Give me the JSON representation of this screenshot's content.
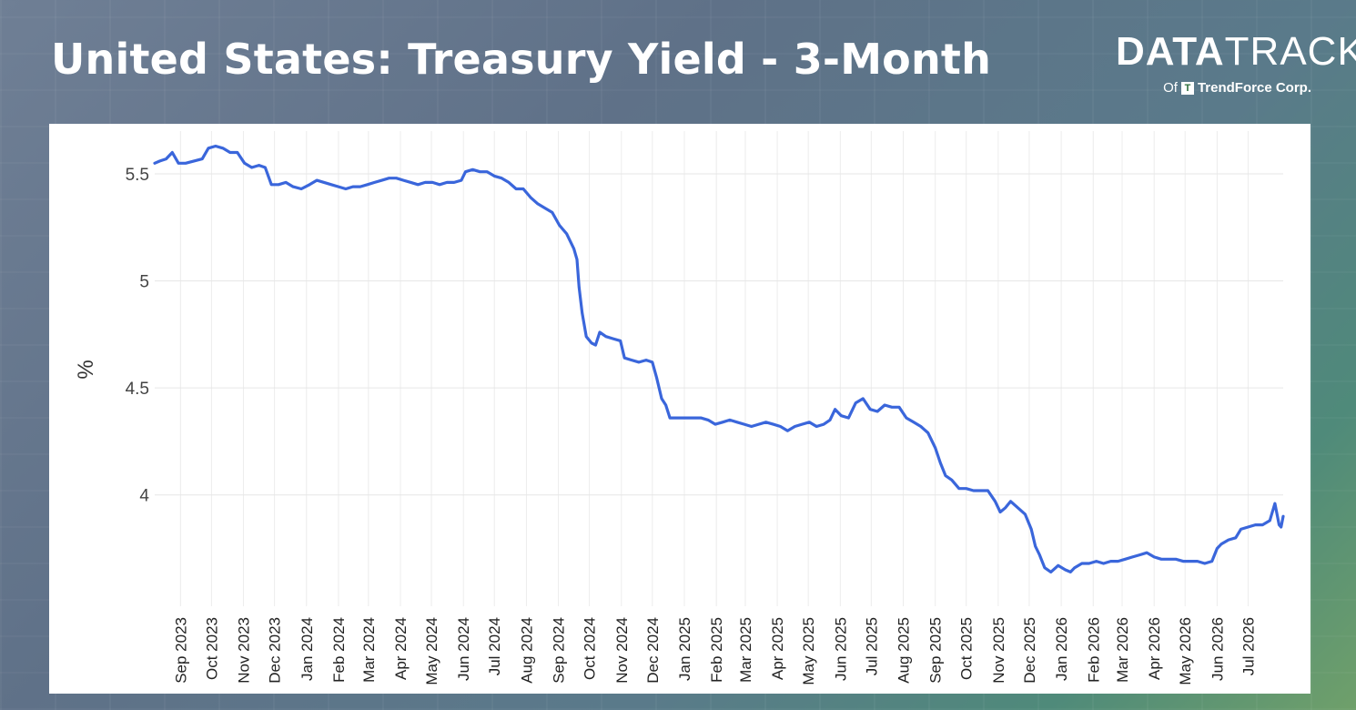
{
  "header": {
    "title": "United States: Treasury Yield - 3-Month",
    "logo_part1": "DATA",
    "logo_part2": "TRACK",
    "logo_of": "Of",
    "logo_company": "TrendForce Corp."
  },
  "chart_data": {
    "type": "line",
    "title": "United States: Treasury Yield - 3-Month",
    "xlabel": "",
    "ylabel": "%",
    "ylim": [
      3.48,
      5.7
    ],
    "yticks": [
      4,
      4.5,
      5,
      5.5
    ],
    "ytick_labels": [
      "4",
      "4.5",
      "5",
      "5.5"
    ],
    "grid": true,
    "line_color": "#3a66db",
    "x_ticks": [
      "2023-09-01",
      "2023-10-01",
      "2023-11-01",
      "2023-12-01",
      "2024-01-01",
      "2024-02-01",
      "2024-03-01",
      "2024-04-01",
      "2024-05-01",
      "2024-06-01",
      "2024-07-01",
      "2024-08-01",
      "2024-09-01",
      "2024-10-01",
      "2024-11-01",
      "2024-12-01",
      "2025-01-01",
      "2025-02-01",
      "2025-03-01",
      "2025-04-01",
      "2025-05-01",
      "2025-06-01",
      "2025-07-01",
      "2025-08-01",
      "2025-09-01",
      "2025-10-01",
      "2025-11-01",
      "2025-12-01",
      "2026-01-01",
      "2026-02-01",
      "2026-03-01",
      "2026-04-01",
      "2026-05-01",
      "2026-06-01",
      "2026-07-01"
    ],
    "x_tick_labels": [
      "Sep 2023",
      "Oct 2023",
      "Nov 2023",
      "Dec 2023",
      "Jan 2024",
      "Feb 2024",
      "Mar 2024",
      "Apr 2024",
      "May 2024",
      "Jun 2024",
      "Jul 2024",
      "Aug 2024",
      "Sep 2024",
      "Oct 2024",
      "Nov 2024",
      "Dec 2024",
      "Jan 2025",
      "Feb 2025",
      "Mar 2025",
      "Apr 2025",
      "May 2025",
      "Jun 2025",
      "Jul 2025",
      "Aug 2025",
      "Sep 2025",
      "Oct 2025",
      "Nov 2025",
      "Dec 2025",
      "Jan 2026",
      "Feb 2026",
      "Mar 2026",
      "Apr 2026",
      "May 2026",
      "Jun 2026",
      "Jul 2026"
    ],
    "series": [
      {
        "name": "",
        "points": [
          [
            "2023-08-07",
            5.55
          ],
          [
            "2023-08-12",
            5.56
          ],
          [
            "2023-08-18",
            5.57
          ],
          [
            "2023-08-24",
            5.6
          ],
          [
            "2023-08-30",
            5.55
          ],
          [
            "2023-09-06",
            5.55
          ],
          [
            "2023-09-14",
            5.56
          ],
          [
            "2023-09-22",
            5.57
          ],
          [
            "2023-09-28",
            5.62
          ],
          [
            "2023-10-05",
            5.63
          ],
          [
            "2023-10-12",
            5.62
          ],
          [
            "2023-10-19",
            5.6
          ],
          [
            "2023-10-26",
            5.6
          ],
          [
            "2023-11-02",
            5.55
          ],
          [
            "2023-11-09",
            5.53
          ],
          [
            "2023-11-16",
            5.54
          ],
          [
            "2023-11-22",
            5.53
          ],
          [
            "2023-11-28",
            5.45
          ],
          [
            "2023-12-05",
            5.45
          ],
          [
            "2023-12-12",
            5.46
          ],
          [
            "2023-12-19",
            5.44
          ],
          [
            "2023-12-27",
            5.43
          ],
          [
            "2024-01-04",
            5.45
          ],
          [
            "2024-01-11",
            5.47
          ],
          [
            "2024-01-18",
            5.46
          ],
          [
            "2024-01-25",
            5.45
          ],
          [
            "2024-02-01",
            5.44
          ],
          [
            "2024-02-08",
            5.43
          ],
          [
            "2024-02-15",
            5.44
          ],
          [
            "2024-02-22",
            5.44
          ],
          [
            "2024-02-29",
            5.45
          ],
          [
            "2024-03-07",
            5.46
          ],
          [
            "2024-03-14",
            5.47
          ],
          [
            "2024-03-21",
            5.48
          ],
          [
            "2024-03-28",
            5.48
          ],
          [
            "2024-04-04",
            5.47
          ],
          [
            "2024-04-11",
            5.46
          ],
          [
            "2024-04-18",
            5.45
          ],
          [
            "2024-04-25",
            5.46
          ],
          [
            "2024-05-02",
            5.46
          ],
          [
            "2024-05-09",
            5.45
          ],
          [
            "2024-05-16",
            5.46
          ],
          [
            "2024-05-23",
            5.46
          ],
          [
            "2024-05-30",
            5.47
          ],
          [
            "2024-06-03",
            5.51
          ],
          [
            "2024-06-10",
            5.52
          ],
          [
            "2024-06-17",
            5.51
          ],
          [
            "2024-06-24",
            5.51
          ],
          [
            "2024-07-01",
            5.49
          ],
          [
            "2024-07-08",
            5.48
          ],
          [
            "2024-07-15",
            5.46
          ],
          [
            "2024-07-22",
            5.43
          ],
          [
            "2024-07-29",
            5.43
          ],
          [
            "2024-08-05",
            5.39
          ],
          [
            "2024-08-12",
            5.36
          ],
          [
            "2024-08-19",
            5.34
          ],
          [
            "2024-08-26",
            5.32
          ],
          [
            "2024-09-02",
            5.26
          ],
          [
            "2024-09-09",
            5.22
          ],
          [
            "2024-09-16",
            5.15
          ],
          [
            "2024-09-19",
            5.1
          ],
          [
            "2024-09-21",
            4.97
          ],
          [
            "2024-09-24",
            4.85
          ],
          [
            "2024-09-28",
            4.74
          ],
          [
            "2024-10-03",
            4.71
          ],
          [
            "2024-10-07",
            4.7
          ],
          [
            "2024-10-11",
            4.76
          ],
          [
            "2024-10-17",
            4.74
          ],
          [
            "2024-10-24",
            4.73
          ],
          [
            "2024-10-31",
            4.72
          ],
          [
            "2024-11-04",
            4.64
          ],
          [
            "2024-11-11",
            4.63
          ],
          [
            "2024-11-18",
            4.62
          ],
          [
            "2024-11-25",
            4.63
          ],
          [
            "2024-12-01",
            4.62
          ],
          [
            "2024-12-05",
            4.55
          ],
          [
            "2024-12-10",
            4.45
          ],
          [
            "2024-12-14",
            4.42
          ],
          [
            "2024-12-18",
            4.36
          ],
          [
            "2024-12-26",
            4.36
          ],
          [
            "2025-01-03",
            4.36
          ],
          [
            "2025-01-10",
            4.36
          ],
          [
            "2025-01-17",
            4.36
          ],
          [
            "2025-01-24",
            4.35
          ],
          [
            "2025-01-31",
            4.33
          ],
          [
            "2025-02-07",
            4.34
          ],
          [
            "2025-02-14",
            4.35
          ],
          [
            "2025-02-21",
            4.34
          ],
          [
            "2025-02-28",
            4.33
          ],
          [
            "2025-03-07",
            4.32
          ],
          [
            "2025-03-14",
            4.33
          ],
          [
            "2025-03-21",
            4.34
          ],
          [
            "2025-03-28",
            4.33
          ],
          [
            "2025-04-04",
            4.32
          ],
          [
            "2025-04-11",
            4.3
          ],
          [
            "2025-04-18",
            4.32
          ],
          [
            "2025-04-25",
            4.33
          ],
          [
            "2025-05-02",
            4.34
          ],
          [
            "2025-05-09",
            4.32
          ],
          [
            "2025-05-16",
            4.33
          ],
          [
            "2025-05-22",
            4.35
          ],
          [
            "2025-05-27",
            4.4
          ],
          [
            "2025-06-02",
            4.37
          ],
          [
            "2025-06-09",
            4.36
          ],
          [
            "2025-06-16",
            4.43
          ],
          [
            "2025-06-23",
            4.45
          ],
          [
            "2025-06-30",
            4.4
          ],
          [
            "2025-07-07",
            4.39
          ],
          [
            "2025-07-14",
            4.42
          ],
          [
            "2025-07-21",
            4.41
          ],
          [
            "2025-07-28",
            4.41
          ],
          [
            "2025-08-04",
            4.36
          ],
          [
            "2025-08-11",
            4.34
          ],
          [
            "2025-08-18",
            4.32
          ],
          [
            "2025-08-25",
            4.29
          ],
          [
            "2025-09-01",
            4.22
          ],
          [
            "2025-09-06",
            4.15
          ],
          [
            "2025-09-11",
            4.09
          ],
          [
            "2025-09-17",
            4.07
          ],
          [
            "2025-09-24",
            4.03
          ],
          [
            "2025-10-01",
            4.03
          ],
          [
            "2025-10-08",
            4.02
          ],
          [
            "2025-10-15",
            4.02
          ],
          [
            "2025-10-22",
            4.02
          ],
          [
            "2025-10-29",
            3.97
          ],
          [
            "2025-11-03",
            3.92
          ],
          [
            "2025-11-08",
            3.94
          ],
          [
            "2025-11-13",
            3.97
          ],
          [
            "2025-11-20",
            3.94
          ],
          [
            "2025-11-27",
            3.91
          ],
          [
            "2025-12-03",
            3.84
          ],
          [
            "2025-12-07",
            3.76
          ],
          [
            "2025-12-11",
            3.72
          ],
          [
            "2025-12-16",
            3.66
          ],
          [
            "2025-12-22",
            3.64
          ],
          [
            "2025-12-29",
            3.67
          ],
          [
            "2026-01-05",
            3.65
          ],
          [
            "2026-01-10",
            3.64
          ],
          [
            "2026-01-14",
            3.66
          ],
          [
            "2026-01-21",
            3.68
          ],
          [
            "2026-01-28",
            3.68
          ],
          [
            "2026-02-04",
            3.69
          ],
          [
            "2026-02-11",
            3.68
          ],
          [
            "2026-02-18",
            3.69
          ],
          [
            "2026-02-25",
            3.69
          ],
          [
            "2026-03-04",
            3.7
          ],
          [
            "2026-03-11",
            3.71
          ],
          [
            "2026-03-18",
            3.72
          ],
          [
            "2026-03-25",
            3.73
          ],
          [
            "2026-04-01",
            3.71
          ],
          [
            "2026-04-08",
            3.7
          ],
          [
            "2026-04-15",
            3.7
          ],
          [
            "2026-04-22",
            3.7
          ],
          [
            "2026-04-29",
            3.69
          ],
          [
            "2026-05-06",
            3.69
          ],
          [
            "2026-05-13",
            3.69
          ],
          [
            "2026-05-20",
            3.68
          ],
          [
            "2026-05-27",
            3.69
          ],
          [
            "2026-06-01",
            3.75
          ],
          [
            "2026-06-05",
            3.77
          ],
          [
            "2026-06-12",
            3.79
          ],
          [
            "2026-06-19",
            3.8
          ],
          [
            "2026-06-24",
            3.84
          ],
          [
            "2026-07-01",
            3.85
          ],
          [
            "2026-07-08",
            3.86
          ],
          [
            "2026-07-15",
            3.86
          ],
          [
            "2026-07-22",
            3.88
          ],
          [
            "2026-07-27",
            3.96
          ],
          [
            "2026-07-31",
            3.86
          ],
          [
            "2026-08-02",
            3.85
          ],
          [
            "2026-08-04",
            3.9
          ]
        ]
      }
    ]
  }
}
